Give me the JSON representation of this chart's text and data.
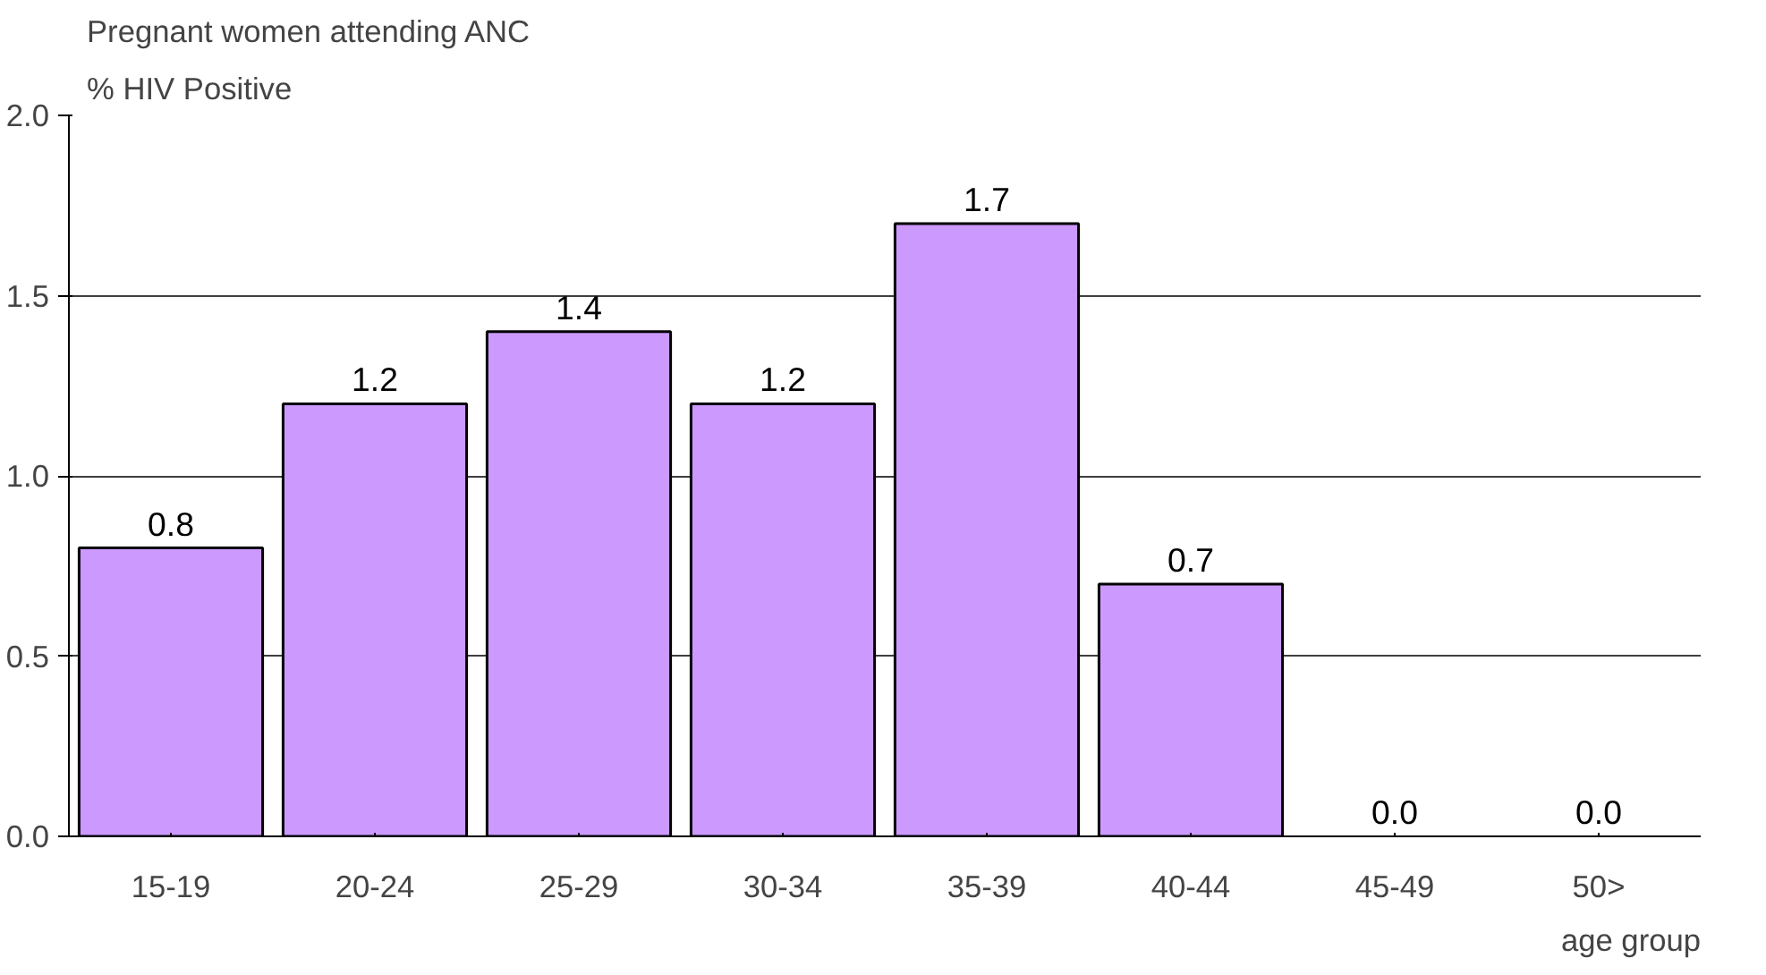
{
  "chart_data": {
    "type": "bar",
    "title": "Pregnant women attending ANC",
    "ylabel": "% HIV Positive",
    "xlabel": "age group",
    "categories": [
      "15-19",
      "20-24",
      "25-29",
      "30-34",
      "35-39",
      "40-44",
      "45-49",
      "50>"
    ],
    "values": [
      0.8,
      1.2,
      1.4,
      1.2,
      1.7,
      0.7,
      0.0,
      0.0
    ],
    "color": "#cc99ff",
    "ylim": [
      0,
      2
    ],
    "yticks": [
      {
        "value": 0,
        "label": "0.0"
      },
      {
        "value": 0.5,
        "label": "0.5"
      },
      {
        "value": 1,
        "label": "1.0"
      },
      {
        "value": 1.5,
        "label": "1.5"
      },
      {
        "value": 2,
        "label": "2.0"
      }
    ],
    "grid": "y",
    "value_labels": [
      "0.8",
      "1.2",
      "1.4",
      "1.2",
      "1.7",
      "0.7",
      "0.0",
      "0.0"
    ]
  }
}
